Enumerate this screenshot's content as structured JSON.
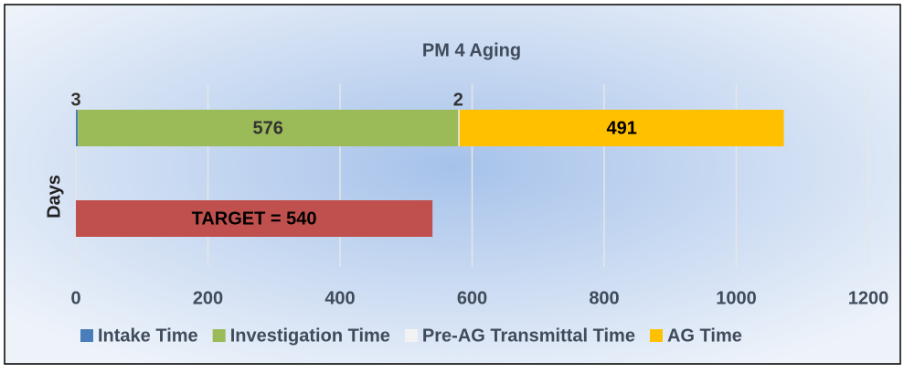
{
  "chart_data": {
    "type": "stacked-barh",
    "title": "PM 4 Aging",
    "y_label": "Days",
    "series": [
      {
        "name": "Intake Time",
        "color": "#4a7ebb",
        "values": [
          3
        ]
      },
      {
        "name": "Investigation Time",
        "color": "#9bbb59",
        "values": [
          576
        ]
      },
      {
        "name": "Pre-AG Transmittal Time",
        "color": "#f2f2f2",
        "values": [
          2
        ]
      },
      {
        "name": "AG Time",
        "color": "#ffc000",
        "values": [
          491
        ]
      }
    ],
    "target": {
      "value": 540,
      "value_label": "TARGET = 540",
      "color": "#c0504d"
    },
    "xlim": [
      0,
      1200
    ],
    "xticks": [
      0,
      200,
      400,
      600,
      800,
      1000,
      1200
    ],
    "grid": true
  }
}
